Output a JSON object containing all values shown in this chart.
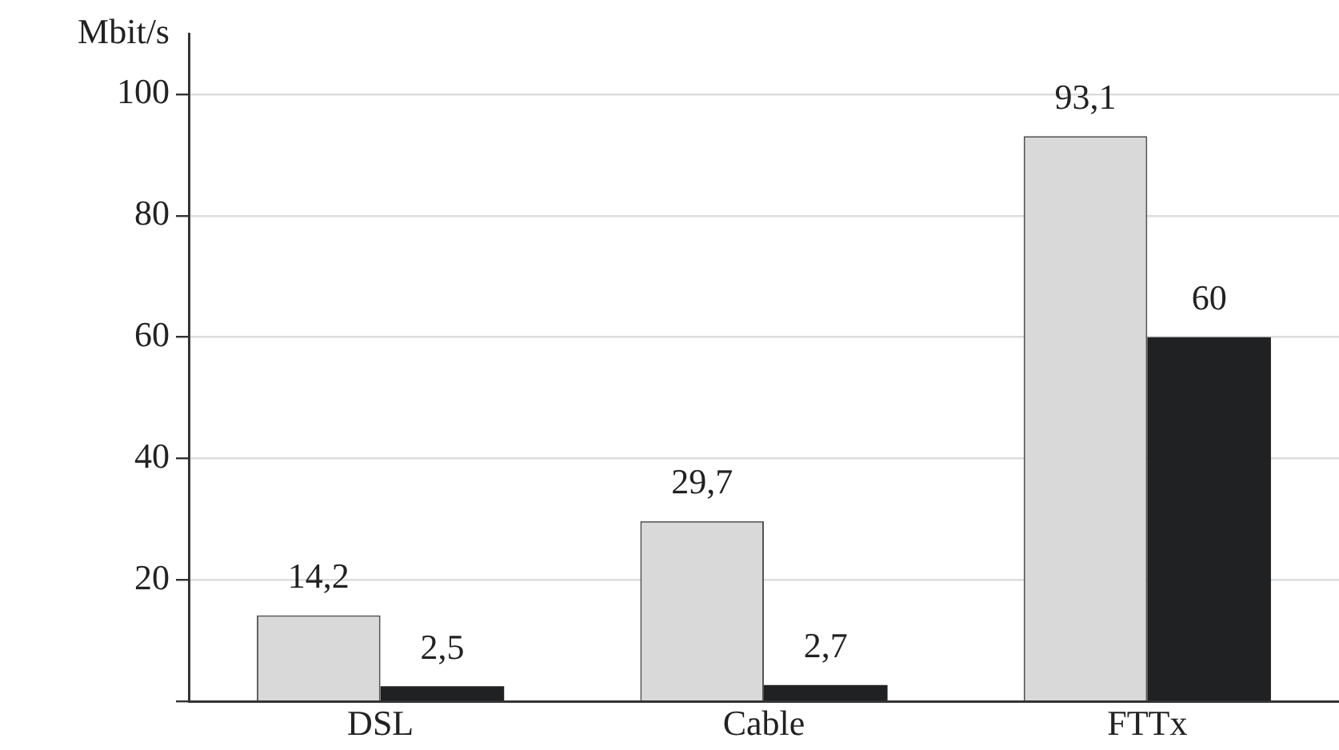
{
  "chart_data": {
    "type": "bar",
    "ylabel": "Mbit/s",
    "categories": [
      "DSL",
      "Cable",
      "FTTx"
    ],
    "series": [
      {
        "color": "#d9d9d9",
        "values": [
          14.2,
          29.7,
          93.1
        ],
        "value_labels": [
          "14,2",
          "29,7",
          "93,1"
        ]
      },
      {
        "color": "#202122",
        "values": [
          2.5,
          2.7,
          60
        ],
        "value_labels": [
          "2,5",
          "2,7",
          "60"
        ]
      }
    ],
    "ylim": [
      0,
      110
    ],
    "yticks": [
      {
        "value": 0,
        "label": null
      },
      20,
      40,
      60,
      80,
      100
    ],
    "grid": "y",
    "legend": false
  }
}
